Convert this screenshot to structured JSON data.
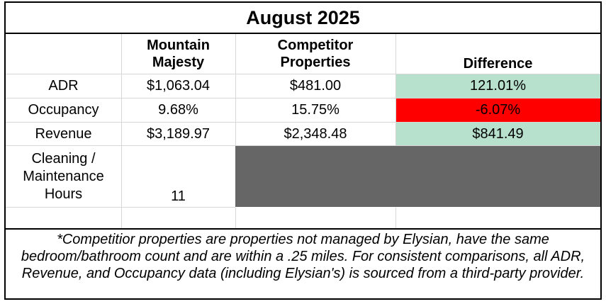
{
  "title": "August 2025",
  "columns": {
    "mountain": "Mountain Majesty",
    "competitor": "Competitor Properties",
    "difference": "Difference"
  },
  "rows": [
    {
      "label": "ADR",
      "mountain": "$1,063.04",
      "competitor": "$481.00",
      "difference": "121.01%"
    },
    {
      "label": "Occupancy",
      "mountain": "9.68%",
      "competitor": "15.75%",
      "difference": "-6.07%"
    },
    {
      "label": "Revenue",
      "mountain": "$3,189.97",
      "competitor": "$2,348.48",
      "difference": "$841.49"
    },
    {
      "label": "Cleaning / Maintenance Hours",
      "mountain": "11"
    }
  ],
  "footnote": "*Competitior properties are properties not managed by Elysian, have the same bedroom/bathroom count and are within a .25 miles. For consistent comparisons, all ADR, Revenue, and Occupancy data (including Elysian's) is sourced from a third-party provider.",
  "colors": {
    "positive": "#b7e1cd",
    "negative": "#ff0000",
    "na_fill": "#666666"
  }
}
